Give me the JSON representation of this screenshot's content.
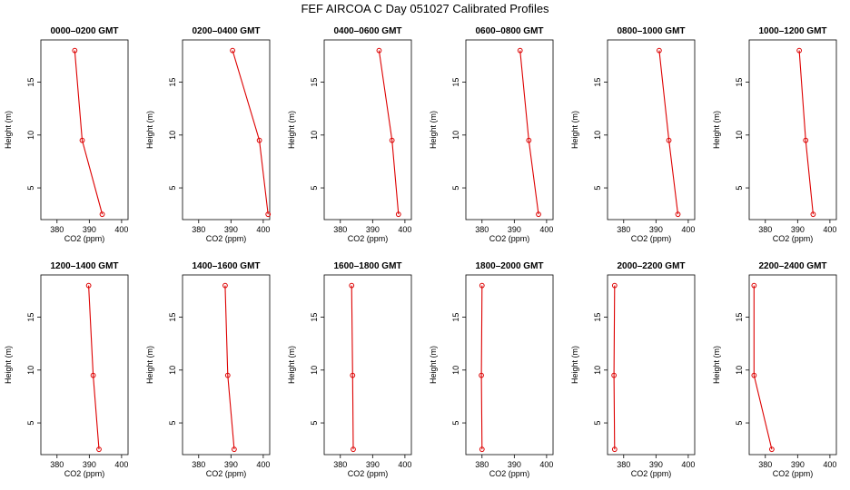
{
  "title": "FEF AIRCOA C  Day 051027  Calibrated Profiles",
  "colors": {
    "series": "#dd0000",
    "axes": "#000000"
  },
  "chart_data": [
    {
      "type": "line",
      "title": "0000–0200 GMT",
      "xlabel": "CO2 (ppm)",
      "ylabel": "Height (m)",
      "xlim": [
        375,
        402
      ],
      "ylim": [
        2,
        19
      ],
      "xticks": [
        380,
        390,
        400
      ],
      "yticks": [
        5,
        10,
        15
      ],
      "x": [
        385.5,
        387.8,
        394.0
      ],
      "y": [
        18,
        9.5,
        2.5
      ]
    },
    {
      "type": "line",
      "title": "0200–0400 GMT",
      "xlabel": "CO2 (ppm)",
      "ylabel": "Height (m)",
      "xlim": [
        375,
        402
      ],
      "ylim": [
        2,
        19
      ],
      "xticks": [
        380,
        390,
        400
      ],
      "yticks": [
        5,
        10,
        15
      ],
      "x": [
        390.5,
        398.8,
        401.5
      ],
      "y": [
        18,
        9.5,
        2.5
      ]
    },
    {
      "type": "line",
      "title": "0400–0600 GMT",
      "xlabel": "CO2 (ppm)",
      "ylabel": "Height (m)",
      "xlim": [
        375,
        402
      ],
      "ylim": [
        2,
        19
      ],
      "xticks": [
        380,
        390,
        400
      ],
      "yticks": [
        5,
        10,
        15
      ],
      "x": [
        392.0,
        396.0,
        398.0
      ],
      "y": [
        18,
        9.5,
        2.5
      ]
    },
    {
      "type": "line",
      "title": "0600–0800 GMT",
      "xlabel": "CO2 (ppm)",
      "ylabel": "Height (m)",
      "xlim": [
        375,
        402
      ],
      "ylim": [
        2,
        19
      ],
      "xticks": [
        380,
        390,
        400
      ],
      "yticks": [
        5,
        10,
        15
      ],
      "x": [
        391.8,
        394.5,
        397.5
      ],
      "y": [
        18,
        9.5,
        2.5
      ]
    },
    {
      "type": "line",
      "title": "0800–1000 GMT",
      "xlabel": "CO2 (ppm)",
      "ylabel": "Height (m)",
      "xlim": [
        375,
        402
      ],
      "ylim": [
        2,
        19
      ],
      "xticks": [
        380,
        390,
        400
      ],
      "yticks": [
        5,
        10,
        15
      ],
      "x": [
        391.0,
        394.0,
        396.8
      ],
      "y": [
        18,
        9.5,
        2.5
      ]
    },
    {
      "type": "line",
      "title": "1000–1200 GMT",
      "xlabel": "CO2 (ppm)",
      "ylabel": "Height (m)",
      "xlim": [
        375,
        402
      ],
      "ylim": [
        2,
        19
      ],
      "xticks": [
        380,
        390,
        400
      ],
      "yticks": [
        5,
        10,
        15
      ],
      "x": [
        390.5,
        392.5,
        394.8
      ],
      "y": [
        18,
        9.5,
        2.5
      ]
    },
    {
      "type": "line",
      "title": "1200–1400 GMT",
      "xlabel": "CO2 (ppm)",
      "ylabel": "Height (m)",
      "xlim": [
        375,
        402
      ],
      "ylim": [
        2,
        19
      ],
      "xticks": [
        380,
        390,
        400
      ],
      "yticks": [
        5,
        10,
        15
      ],
      "x": [
        389.8,
        391.2,
        393.0
      ],
      "y": [
        18,
        9.5,
        2.5
      ]
    },
    {
      "type": "line",
      "title": "1400–1600 GMT",
      "xlabel": "CO2 (ppm)",
      "ylabel": "Height (m)",
      "xlim": [
        375,
        402
      ],
      "ylim": [
        2,
        19
      ],
      "xticks": [
        380,
        390,
        400
      ],
      "yticks": [
        5,
        10,
        15
      ],
      "x": [
        388.2,
        389.0,
        391.0
      ],
      "y": [
        18,
        9.5,
        2.5
      ]
    },
    {
      "type": "line",
      "title": "1600–1800 GMT",
      "xlabel": "CO2 (ppm)",
      "ylabel": "Height (m)",
      "xlim": [
        375,
        402
      ],
      "ylim": [
        2,
        19
      ],
      "xticks": [
        380,
        390,
        400
      ],
      "yticks": [
        5,
        10,
        15
      ],
      "x": [
        383.5,
        383.8,
        384.0
      ],
      "y": [
        18,
        9.5,
        2.5
      ]
    },
    {
      "type": "line",
      "title": "1800–2000 GMT",
      "xlabel": "CO2 (ppm)",
      "ylabel": "Height (m)",
      "xlim": [
        375,
        402
      ],
      "ylim": [
        2,
        19
      ],
      "xticks": [
        380,
        390,
        400
      ],
      "yticks": [
        5,
        10,
        15
      ],
      "x": [
        380.0,
        379.8,
        380.0
      ],
      "y": [
        18,
        9.5,
        2.5
      ]
    },
    {
      "type": "line",
      "title": "2000–2200 GMT",
      "xlabel": "CO2 (ppm)",
      "ylabel": "Height (m)",
      "xlim": [
        375,
        402
      ],
      "ylim": [
        2,
        19
      ],
      "xticks": [
        380,
        390,
        400
      ],
      "yticks": [
        5,
        10,
        15
      ],
      "x": [
        377.2,
        377.0,
        377.2
      ],
      "y": [
        18,
        9.5,
        2.5
      ]
    },
    {
      "type": "line",
      "title": "2200–2400 GMT",
      "xlabel": "CO2 (ppm)",
      "ylabel": "Height (m)",
      "xlim": [
        375,
        402
      ],
      "ylim": [
        2,
        19
      ],
      "xticks": [
        380,
        390,
        400
      ],
      "yticks": [
        5,
        10,
        15
      ],
      "x": [
        376.5,
        376.5,
        382.0
      ],
      "y": [
        18,
        9.5,
        2.5
      ]
    }
  ]
}
